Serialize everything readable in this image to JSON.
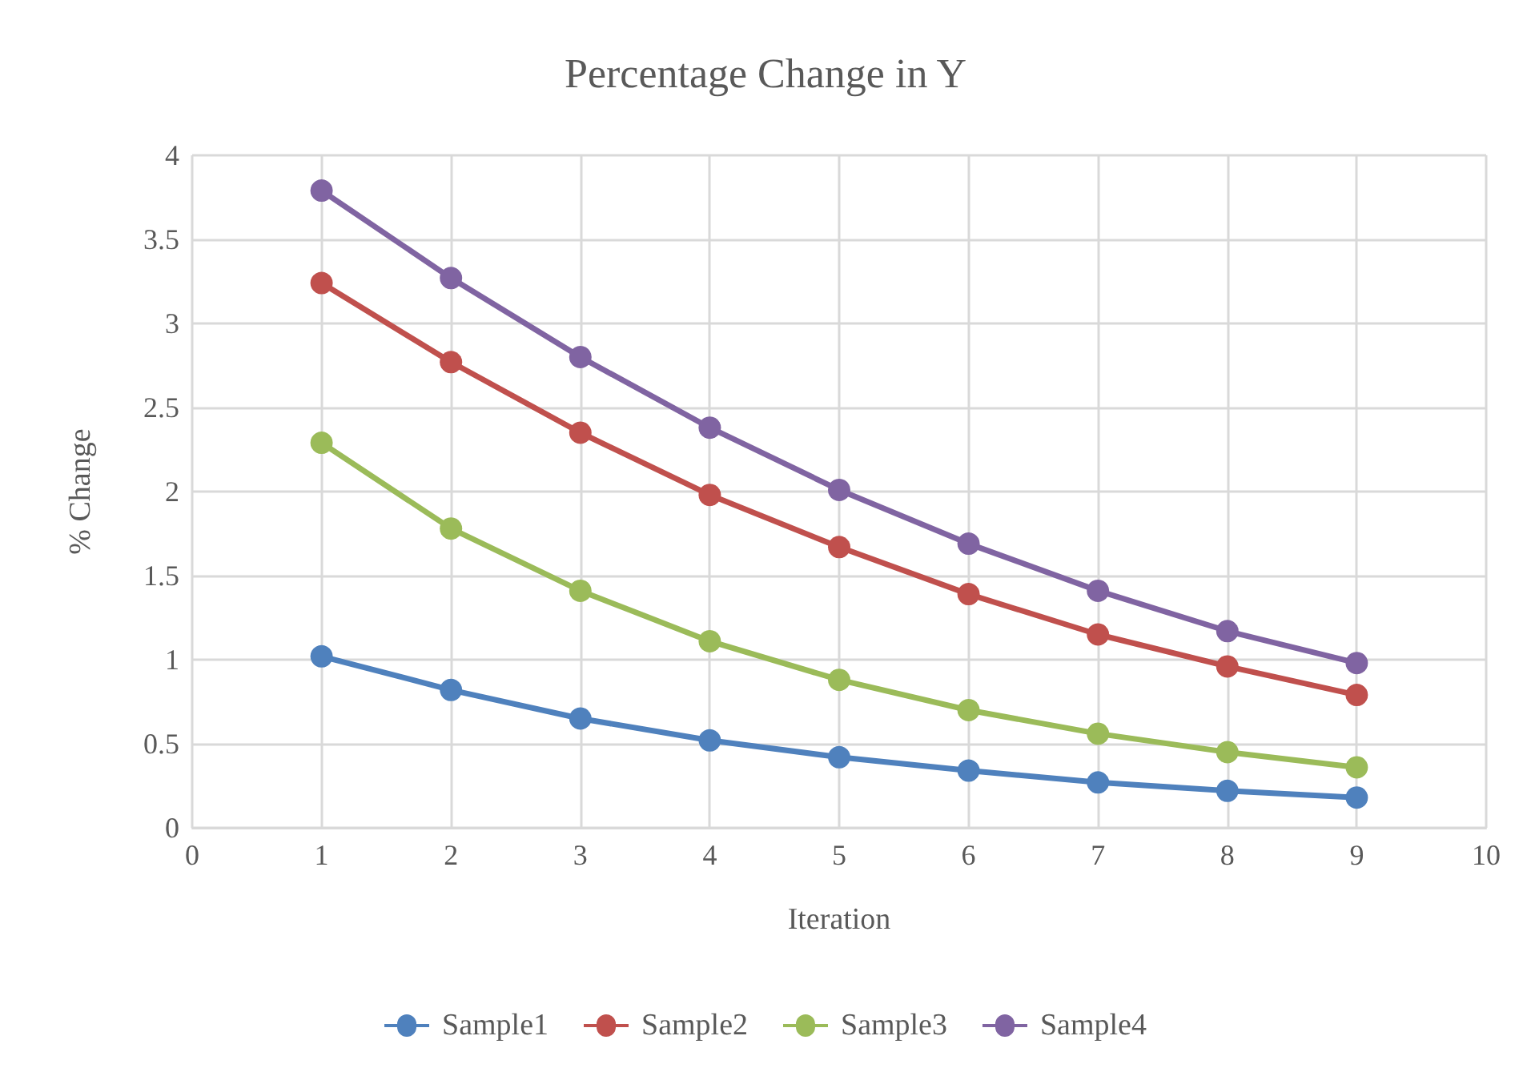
{
  "chart_data": {
    "type": "line",
    "title": "Percentage Change in Y",
    "xlabel": "Iteration",
    "ylabel": "% Change",
    "x": [
      1,
      2,
      3,
      4,
      5,
      6,
      7,
      8,
      9
    ],
    "series": [
      {
        "name": "Sample1",
        "color": "#4f81bd",
        "values": [
          1.02,
          0.82,
          0.65,
          0.52,
          0.42,
          0.34,
          0.27,
          0.22,
          0.18
        ]
      },
      {
        "name": "Sample2",
        "color": "#c0504d",
        "values": [
          3.24,
          2.77,
          2.35,
          1.98,
          1.67,
          1.39,
          1.15,
          0.96,
          0.79
        ]
      },
      {
        "name": "Sample3",
        "color": "#9bbb59",
        "values": [
          2.29,
          1.78,
          1.41,
          1.11,
          0.88,
          0.7,
          0.56,
          0.45,
          0.36
        ]
      },
      {
        "name": "Sample4",
        "color": "#8064a2",
        "values": [
          3.79,
          3.27,
          2.8,
          2.38,
          2.01,
          1.69,
          1.41,
          1.17,
          0.98
        ]
      }
    ],
    "xlim": [
      0,
      10
    ],
    "xticks": [
      0,
      1,
      2,
      3,
      4,
      5,
      6,
      7,
      8,
      9,
      10
    ],
    "ylim": [
      0,
      4
    ],
    "yticks": [
      0,
      0.5,
      1,
      1.5,
      2,
      2.5,
      3,
      3.5,
      4
    ],
    "grid": true,
    "legend": "bottom",
    "marker": "circle",
    "line_style": "solid"
  }
}
